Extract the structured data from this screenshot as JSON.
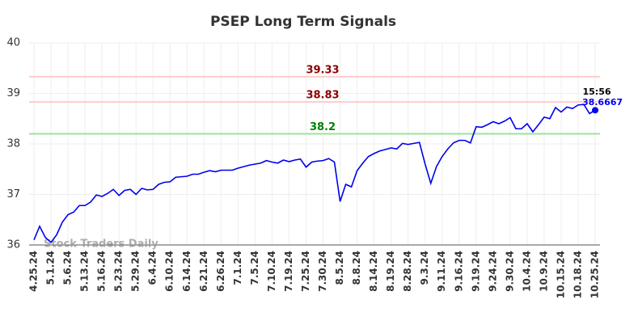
{
  "chart_data": {
    "type": "line",
    "title": "PSEP Long Term Signals",
    "categories": [
      "4.25.24",
      null,
      null,
      "5.1.24",
      null,
      null,
      "5.6.24",
      null,
      null,
      "5.13.24",
      null,
      null,
      "5.16.24",
      null,
      null,
      "5.23.24",
      null,
      null,
      "5.29.24",
      null,
      null,
      "6.4.24",
      null,
      null,
      "6.10.24",
      null,
      null,
      "6.14.24",
      null,
      null,
      "6.21.24",
      null,
      null,
      "6.26.24",
      null,
      null,
      "7.1.24",
      null,
      null,
      "7.5.24",
      null,
      null,
      "7.10.24",
      null,
      null,
      "7.19.24",
      null,
      null,
      "7.25.24",
      null,
      null,
      "7.30.24",
      null,
      null,
      "8.5.24",
      null,
      null,
      "8.8.24",
      null,
      null,
      "8.14.24",
      null,
      null,
      "8.19.24",
      null,
      null,
      "8.28.24",
      null,
      null,
      "9.3.24",
      null,
      null,
      "9.11.24",
      null,
      null,
      "9.16.24",
      null,
      null,
      "9.19.24",
      null,
      null,
      "9.24.24",
      null,
      null,
      "9.30.24",
      null,
      null,
      "10.4.24",
      null,
      null,
      "10.9.24",
      null,
      null,
      "10.15.24",
      null,
      null,
      "10.18.24",
      null,
      null,
      "10.25.24"
    ],
    "values": [
      36.1,
      36.37,
      36.15,
      36.05,
      36.2,
      36.45,
      36.6,
      36.65,
      36.78,
      36.78,
      36.85,
      36.99,
      36.96,
      37.02,
      37.1,
      36.98,
      37.08,
      37.1,
      37.0,
      37.12,
      37.09,
      37.1,
      37.2,
      37.24,
      37.25,
      37.34,
      37.35,
      37.36,
      37.4,
      37.4,
      37.44,
      37.47,
      37.45,
      37.48,
      37.48,
      37.48,
      37.52,
      37.55,
      37.58,
      37.6,
      37.62,
      37.67,
      37.64,
      37.62,
      37.68,
      37.65,
      37.68,
      37.7,
      37.54,
      37.64,
      37.66,
      37.67,
      37.71,
      37.64,
      36.86,
      37.2,
      37.15,
      37.47,
      37.62,
      37.75,
      37.81,
      37.86,
      37.89,
      37.92,
      37.9,
      38.01,
      37.99,
      38.01,
      38.03,
      37.6,
      37.22,
      37.55,
      37.75,
      37.9,
      38.02,
      38.07,
      38.07,
      38.02,
      38.34,
      38.33,
      38.38,
      38.44,
      38.4,
      38.45,
      38.52,
      38.3,
      38.3,
      38.4,
      38.24,
      38.38,
      38.53,
      38.5,
      38.72,
      38.63,
      38.73,
      38.7,
      38.77,
      38.78,
      38.6,
      38.6667
    ],
    "color": "#0000ee",
    "ylim": [
      36,
      40
    ],
    "yticks": [
      36,
      37,
      38,
      39,
      40
    ],
    "grid": true,
    "hlines": [
      {
        "value": 39.33,
        "color": "#ffcccc",
        "label_color": "#8b0000"
      },
      {
        "value": 38.83,
        "color": "#ffcccc",
        "label_color": "#8b0000"
      },
      {
        "value": 38.2,
        "color": "#99e699",
        "label_color": "#008000"
      }
    ],
    "last_time": "15:56",
    "watermark": "Stock Traders Daily"
  }
}
